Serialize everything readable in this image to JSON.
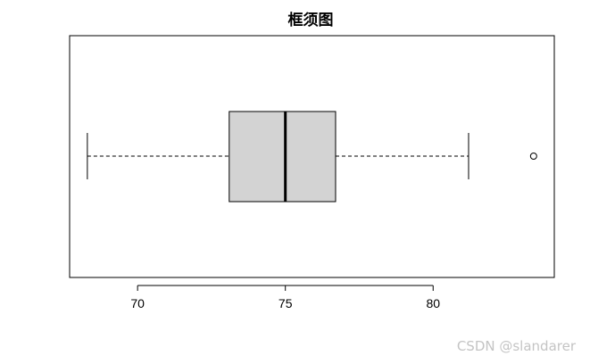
{
  "chart_data": {
    "type": "boxplot",
    "orientation": "horizontal",
    "title": "框须图",
    "xlabel": "",
    "ylabel": "",
    "xlim": [
      67.7,
      84.1
    ],
    "ticks": [
      70,
      75,
      80
    ],
    "tick_labels": [
      "70",
      "75",
      "80"
    ],
    "colors": {
      "box_fill": "#d3d3d3",
      "line": "#000000"
    },
    "box": {
      "whisker_low": 68.3,
      "q1": 73.1,
      "median": 75.0,
      "q3": 76.7,
      "whisker_high": 81.2,
      "outliers": [
        83.4
      ]
    },
    "grid": false,
    "legend": "none"
  },
  "watermark": "CSDN @slandarer"
}
